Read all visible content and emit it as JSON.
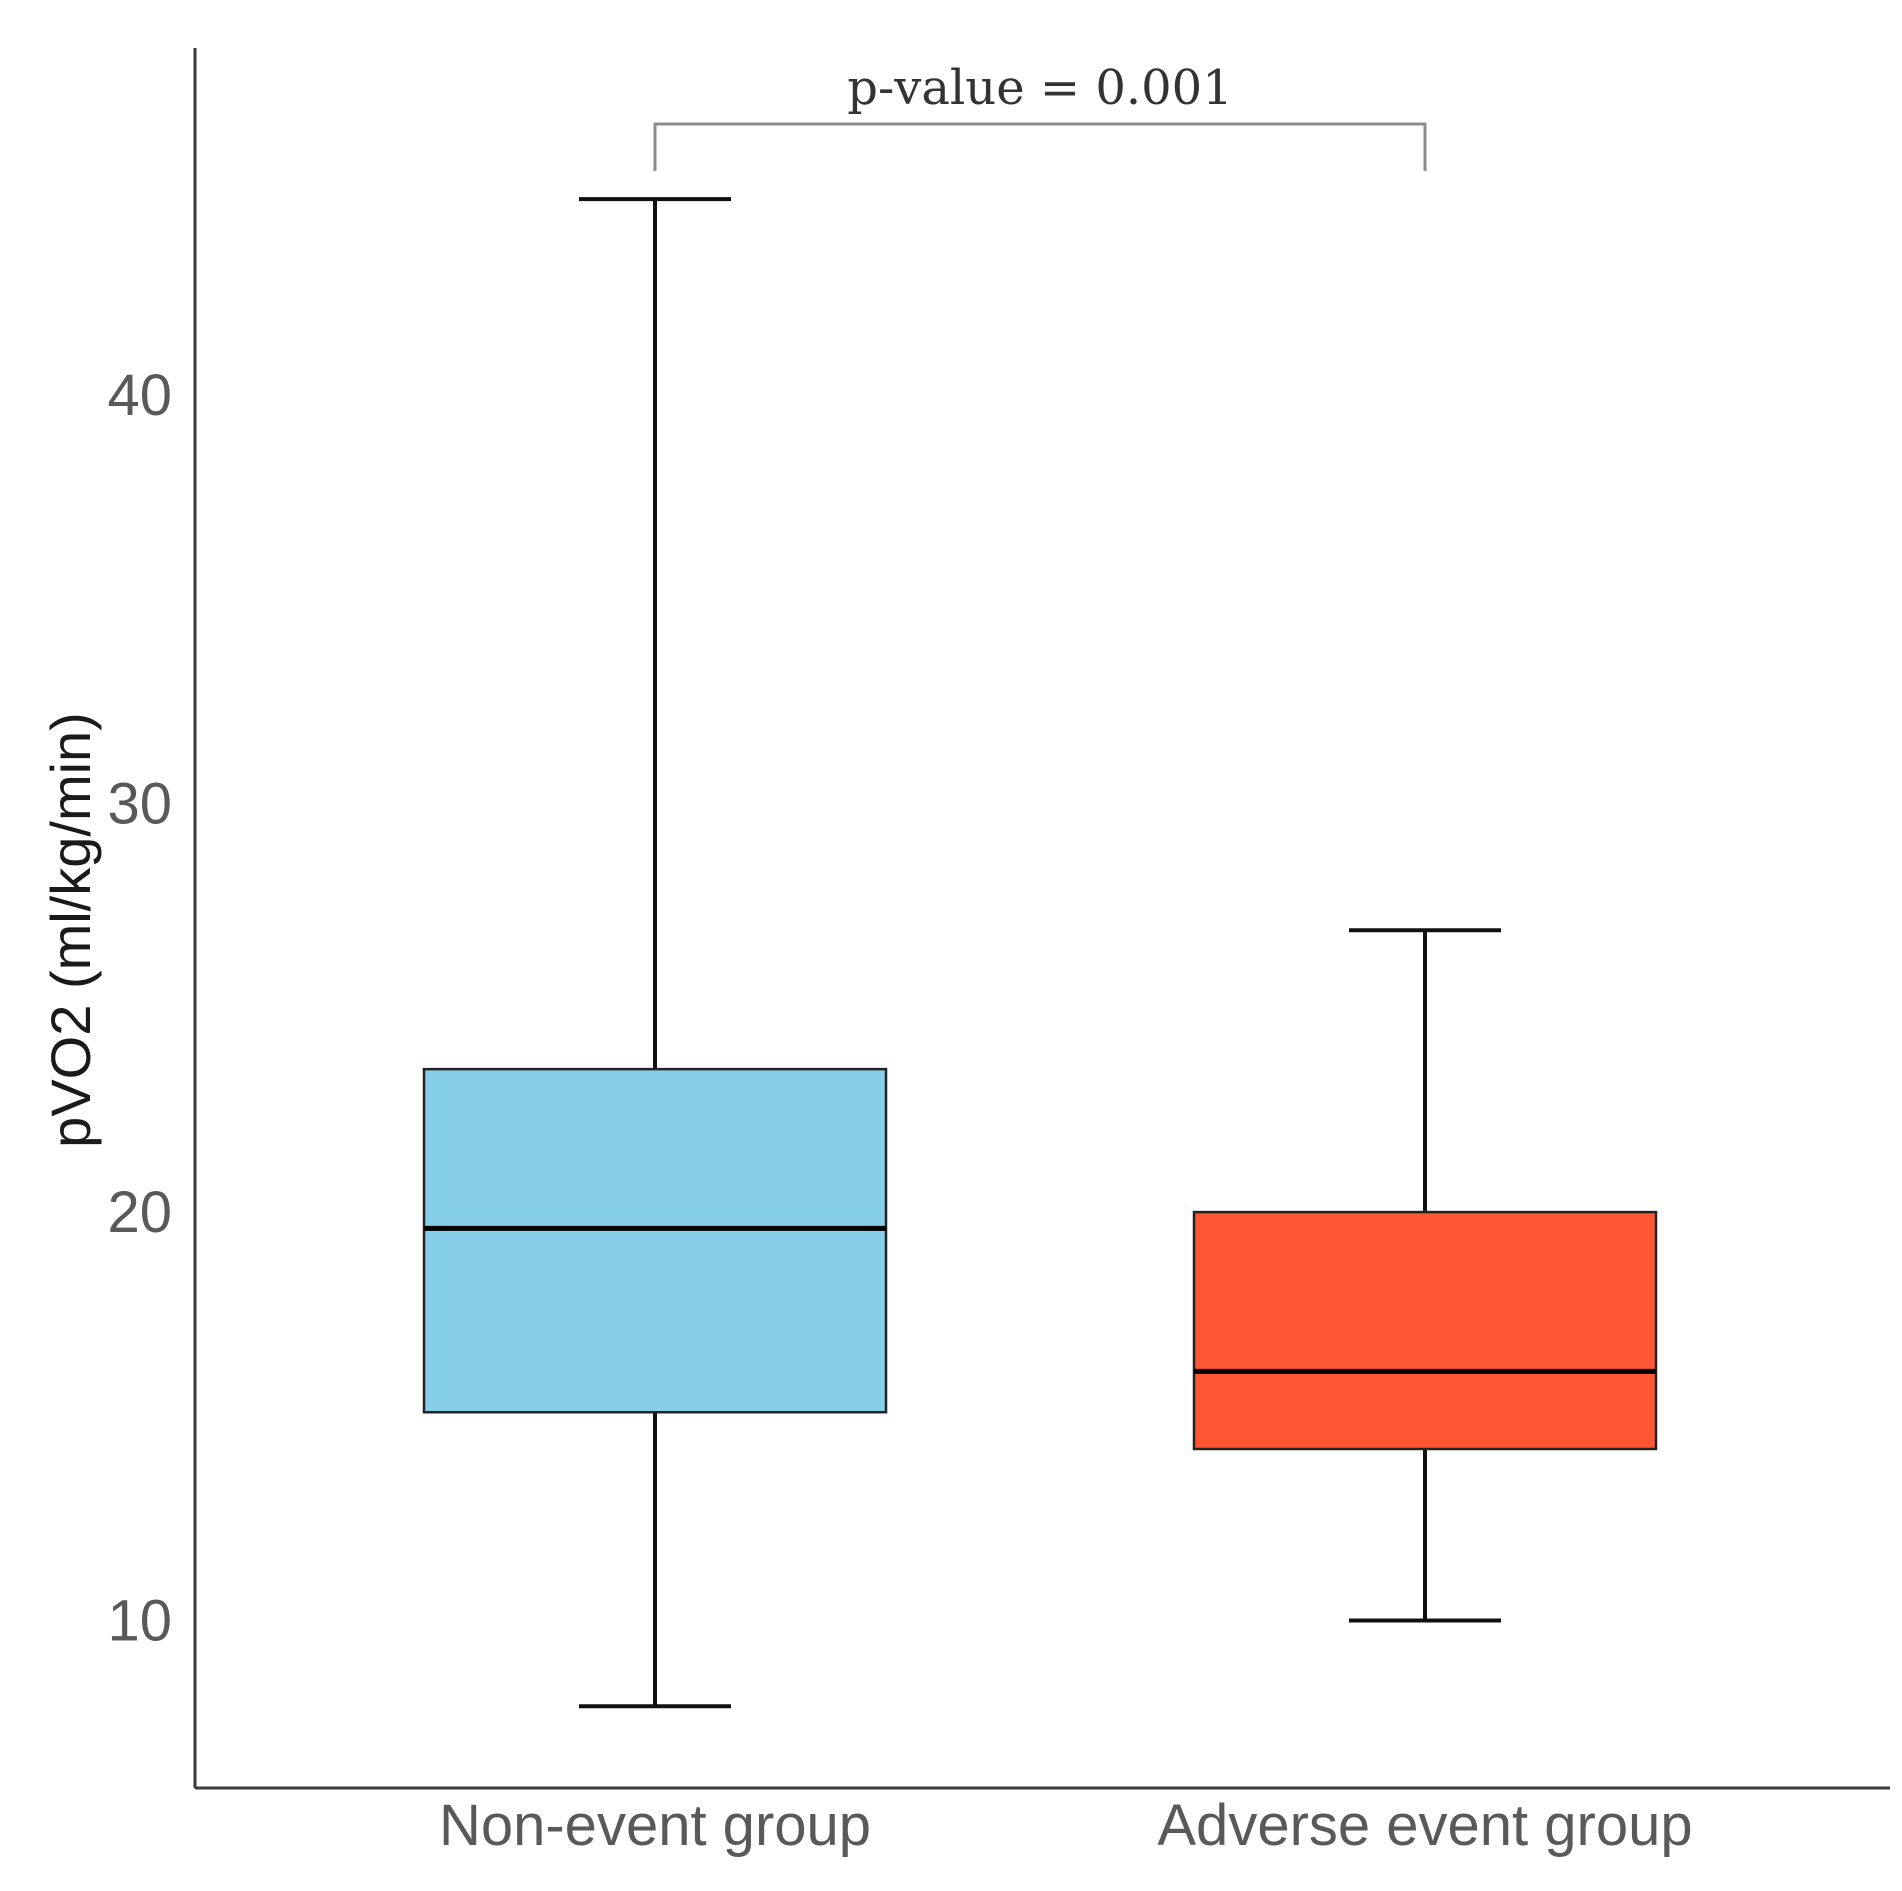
{
  "chart_data": {
    "type": "box",
    "title": "",
    "xlabel": "",
    "ylabel": "pVO2 (ml/kg/min)",
    "ylim": [
      5.9,
      48.5
    ],
    "yticks": [
      10,
      20,
      30,
      40
    ],
    "ytick_labels": [
      "10",
      "20",
      "30",
      "40"
    ],
    "categories": [
      "Non-event group",
      "Adverse event group"
    ],
    "boxes": [
      {
        "name": "Non-event group",
        "min": 7.9,
        "q1": 15.1,
        "median": 19.6,
        "q3": 23.5,
        "max": 44.8,
        "color": "#87CEEB"
      },
      {
        "name": "Adverse event group",
        "min": 10.0,
        "q1": 14.2,
        "median": 16.1,
        "q3": 20.0,
        "max": 26.9,
        "color": "#FF5733"
      }
    ],
    "annotation": {
      "text": "p-value = 0.001",
      "from": 0,
      "to": 1
    },
    "grid": false,
    "legend": "none"
  }
}
